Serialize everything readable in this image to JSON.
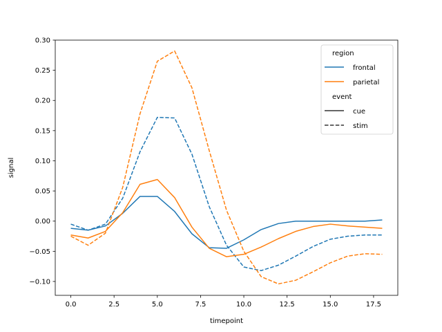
{
  "chart_data": {
    "type": "line",
    "title": "",
    "xlabel": "timepoint",
    "ylabel": "signal",
    "xlim": [
      -0.9,
      18.9
    ],
    "ylim": [
      -0.123,
      0.3
    ],
    "x_ticks": [
      0.0,
      2.5,
      5.0,
      7.5,
      10.0,
      12.5,
      15.0,
      17.5
    ],
    "x_tick_labels": [
      "0.0",
      "2.5",
      "5.0",
      "7.5",
      "10.0",
      "12.5",
      "15.0",
      "17.5"
    ],
    "y_ticks": [
      -0.1,
      -0.05,
      0.0,
      0.05,
      0.1,
      0.15,
      0.2,
      0.25,
      0.3
    ],
    "y_tick_labels": [
      "−0.10",
      "−0.05",
      "0.00",
      "0.05",
      "0.10",
      "0.15",
      "0.20",
      "0.25",
      "0.30"
    ],
    "grid": false,
    "legend": {
      "placement": "top-right",
      "region_title": "region",
      "event_title": "event",
      "entries": [
        {
          "label": "frontal",
          "color": "#1f77b4",
          "dash": "solid"
        },
        {
          "label": "parietal",
          "color": "#ff7f0e",
          "dash": "solid"
        },
        {
          "label": "cue",
          "color": "#333333",
          "dash": "solid"
        },
        {
          "label": "stim",
          "color": "#333333",
          "dash": "dashed"
        }
      ]
    },
    "x": [
      0,
      1,
      2,
      3,
      4,
      5,
      6,
      7,
      8,
      9,
      10,
      11,
      12,
      13,
      14,
      15,
      16,
      17,
      18
    ],
    "series": [
      {
        "region": "frontal",
        "event": "cue",
        "color": "#1f77b4",
        "dash": "solid",
        "values": [
          -0.012,
          -0.015,
          -0.008,
          0.013,
          0.041,
          0.041,
          0.016,
          -0.021,
          -0.044,
          -0.045,
          -0.031,
          -0.014,
          -0.004,
          0.0,
          0.0,
          0.0,
          0.0,
          0.0,
          0.002
        ]
      },
      {
        "region": "frontal",
        "event": "stim",
        "color": "#1f77b4",
        "dash": "dashed",
        "values": [
          -0.005,
          -0.015,
          -0.005,
          0.038,
          0.115,
          0.172,
          0.171,
          0.111,
          0.024,
          -0.04,
          -0.076,
          -0.082,
          -0.073,
          -0.058,
          -0.042,
          -0.03,
          -0.025,
          -0.023,
          -0.023
        ]
      },
      {
        "region": "parietal",
        "event": "cue",
        "color": "#ff7f0e",
        "dash": "solid",
        "values": [
          -0.023,
          -0.028,
          -0.017,
          0.014,
          0.061,
          0.069,
          0.039,
          -0.01,
          -0.045,
          -0.059,
          -0.055,
          -0.043,
          -0.029,
          -0.017,
          -0.009,
          -0.005,
          -0.008,
          -0.01,
          -0.012
        ]
      },
      {
        "region": "parietal",
        "event": "stim",
        "color": "#ff7f0e",
        "dash": "dashed",
        "values": [
          -0.025,
          -0.04,
          -0.02,
          0.056,
          0.178,
          0.265,
          0.282,
          0.221,
          0.117,
          0.018,
          -0.05,
          -0.092,
          -0.104,
          -0.098,
          -0.084,
          -0.069,
          -0.058,
          -0.054,
          -0.055
        ]
      }
    ]
  }
}
